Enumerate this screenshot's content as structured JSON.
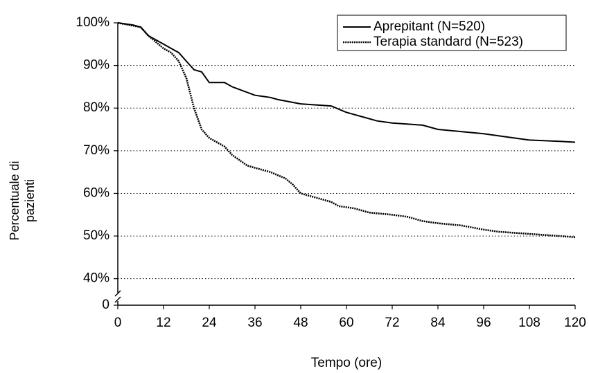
{
  "chart_data": {
    "type": "line",
    "xlabel": "Tempo (ore)",
    "ylabel": "Percentuale di pazienti",
    "xlim": [
      0,
      120
    ],
    "xticks": [
      0,
      12,
      24,
      36,
      48,
      60,
      72,
      84,
      96,
      108,
      120
    ],
    "ylim": [
      0,
      100
    ],
    "y_break": [
      0,
      38
    ],
    "yticks": [
      {
        "value": 0,
        "label": "0"
      },
      {
        "value": 40,
        "label": "40%"
      },
      {
        "value": 50,
        "label": "50%"
      },
      {
        "value": 60,
        "label": "60%"
      },
      {
        "value": 70,
        "label": "70%"
      },
      {
        "value": 80,
        "label": "80%"
      },
      {
        "value": 90,
        "label": "90%"
      },
      {
        "value": 100,
        "label": "100%"
      }
    ],
    "grid": true,
    "legend": "upper right",
    "series": [
      {
        "name": "Aprepitant (N=520)",
        "color": "#000000",
        "dashed": false,
        "x": [
          0,
          4,
          6,
          8,
          10,
          12,
          14,
          16,
          18,
          20,
          22,
          24,
          28,
          30,
          36,
          40,
          42,
          48,
          56,
          60,
          64,
          68,
          72,
          80,
          84,
          90,
          96,
          104,
          108,
          116,
          120
        ],
        "values": [
          100,
          99.5,
          99,
          97,
          96,
          95,
          94,
          93,
          91,
          89,
          88.5,
          86,
          86,
          85,
          83,
          82.5,
          82,
          81,
          80.5,
          79,
          78,
          77,
          76.5,
          76,
          75,
          74.5,
          74,
          73,
          72.5,
          72.2,
          72
        ]
      },
      {
        "name": "Terapia standard (N=523)",
        "color": "#000000",
        "dashed": true,
        "x": [
          0,
          6,
          8,
          10,
          12,
          14,
          16,
          18,
          20,
          22,
          24,
          28,
          30,
          34,
          36,
          40,
          44,
          46,
          48,
          52,
          56,
          58,
          62,
          66,
          72,
          76,
          80,
          84,
          90,
          96,
          100,
          108,
          116,
          120
        ],
        "values": [
          100,
          99,
          97,
          95.5,
          94,
          93,
          91,
          87,
          80,
          75,
          73,
          71,
          69,
          66.5,
          66,
          65,
          63.5,
          62,
          60,
          59,
          58,
          57,
          56.5,
          55.5,
          55,
          54.5,
          53.5,
          53,
          52.5,
          51.5,
          51,
          50.5,
          50,
          49.7
        ]
      }
    ]
  }
}
